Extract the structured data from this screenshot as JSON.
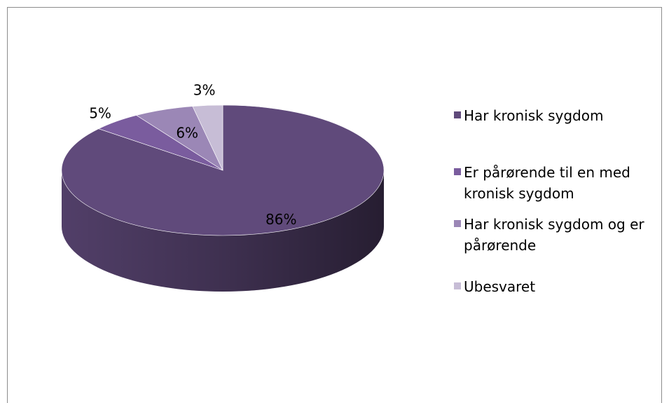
{
  "chart_data": {
    "type": "pie",
    "three_d": true,
    "categories": [
      "Har kronisk sygdom",
      "Er pårørende til en med kronisk sygdom",
      "Har kronisk sygdom og er pårørende",
      "Ubesvaret"
    ],
    "values": [
      86,
      5,
      6,
      3
    ],
    "value_labels": [
      "86%",
      "5%",
      "6%",
      "3%"
    ],
    "colors": [
      "#604a7b",
      "#7a5c9e",
      "#9b87b6",
      "#c7bdd6"
    ],
    "legend": "right"
  }
}
